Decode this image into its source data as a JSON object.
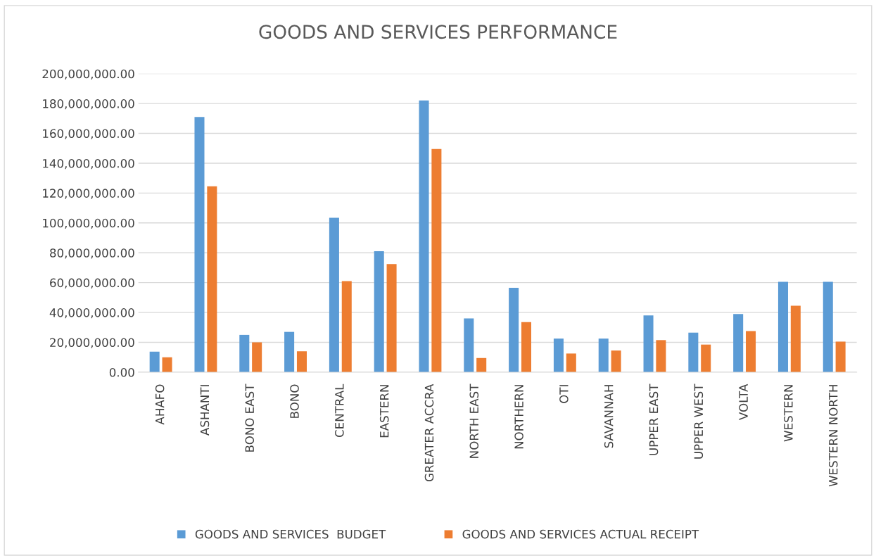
{
  "chart_data": {
    "type": "bar",
    "title": "GOODS AND SERVICES PERFORMANCE",
    "categories": [
      "AHAFO",
      "ASHANTI",
      "BONO EAST",
      "BONO",
      "CENTRAL",
      "EASTERN",
      "GREATER ACCRA",
      "NORTH EAST",
      "NORTHERN",
      "OTI",
      "SAVANNAH",
      "UPPER EAST",
      "UPPER WEST",
      "VOLTA",
      "WESTERN",
      "WESTERN NORTH"
    ],
    "series": [
      {
        "name": "GOODS AND SERVICES  BUDGET",
        "color": "#5b9bd5",
        "values": [
          13700000,
          171000000,
          25000000,
          27000000,
          103500000,
          81000000,
          182000000,
          36000000,
          56500000,
          22500000,
          22500000,
          38000000,
          26500000,
          39000000,
          60500000,
          60500000
        ]
      },
      {
        "name": "GOODS AND SERVICES ACTUAL RECEIPT",
        "color": "#ed7d31",
        "values": [
          10000000,
          124500000,
          20000000,
          14000000,
          61000000,
          72500000,
          149500000,
          9500000,
          33500000,
          12500000,
          14500000,
          21500000,
          18500000,
          27500000,
          44500000,
          20500000
        ]
      }
    ],
    "ylim": [
      0,
      200000000
    ],
    "yticks": [
      {
        "value": 0,
        "label": "0.00"
      },
      {
        "value": 20000000,
        "label": "20,000,000.00"
      },
      {
        "value": 40000000,
        "label": "40,000,000.00"
      },
      {
        "value": 60000000,
        "label": "60,000,000.00"
      },
      {
        "value": 80000000,
        "label": "80,000,000.00"
      },
      {
        "value": 100000000,
        "label": "100,000,000.00"
      },
      {
        "value": 120000000,
        "label": "120,000,000.00"
      },
      {
        "value": 140000000,
        "label": "140,000,000.00"
      },
      {
        "value": 160000000,
        "label": "160,000,000.00"
      },
      {
        "value": 180000000,
        "label": "180,000,000.00"
      },
      {
        "value": 200000000,
        "label": "200,000,000.00"
      }
    ],
    "grid": "y",
    "legend": "bottom"
  }
}
